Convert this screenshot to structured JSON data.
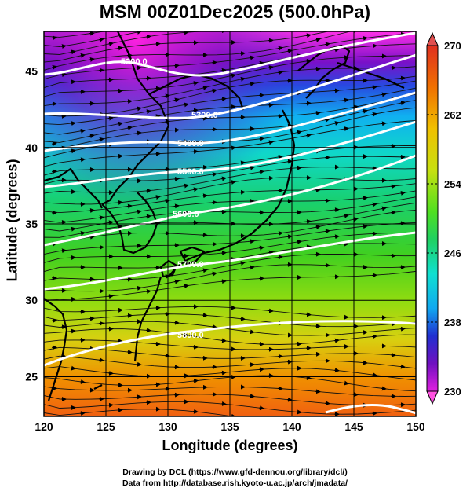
{
  "title": "MSM 00Z01Dec2025 (500.0hPa)",
  "axes": {
    "xlabel": "Longitude (degrees)",
    "ylabel": "Latitude  (degrees)",
    "xrange": [
      120,
      150
    ],
    "yrange": [
      22.4,
      47.6
    ],
    "xticks": [
      "120",
      "125",
      "130",
      "135",
      "140",
      "145",
      "150"
    ],
    "yticks": [
      "25",
      "30",
      "35",
      "40",
      "45"
    ]
  },
  "colorbar": {
    "min": 230,
    "max": 270,
    "tick_labels": [
      "270",
      "262",
      "254",
      "246",
      "238",
      "230"
    ],
    "colors": [
      "#e020e0",
      "#7010c0",
      "#2030d0",
      "#10a8f0",
      "#10e0d0",
      "#20d060",
      "#50e020",
      "#c8e010",
      "#f0c000",
      "#f07000",
      "#e03020"
    ]
  },
  "contour_labels": [
    "5200.0",
    "5300.0",
    "5400.0",
    "5500.0",
    "5600.0",
    "5700.0",
    "5800.0"
  ],
  "credits": {
    "line1": "Drawing by DCL (https://www.gfd-dennou.org/library/dcl/)",
    "line2": "Data from http://database.rish.kyoto-u.ac.jp/arch/jmadata/"
  }
}
